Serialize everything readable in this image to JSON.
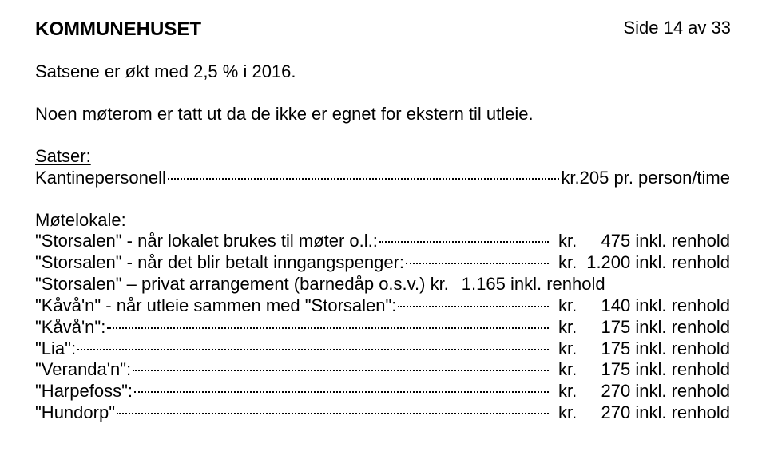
{
  "page_number": "Side 14 av 33",
  "title": "KOMMUNEHUSET",
  "intro1": "Satsene er økt med 2,5 % i 2016.",
  "intro2": "Noen møterom er tatt ut da de ikke er egnet for ekstern til utleie.",
  "section_label": "Satser:",
  "kantine_row": {
    "label": "Kantinepersonell",
    "unit": " kr.",
    "tail": "  205 pr. person/time"
  },
  "subheading": "Møtelokale:",
  "rows": [
    {
      "label": "\"Storsalen\" - når lokalet brukes til møter o.l.:",
      "unit": " kr.",
      "price": "   475 inkl. renhold"
    },
    {
      "label": "\"Storsalen\" - når det blir betalt inngangspenger:",
      "unit": " kr.",
      "price": "1.200 inkl. renhold"
    },
    {
      "label": "\"Storsalen\" – privat arrangement (barnedåp o.s.v.) kr.",
      "unit": "",
      "price": "1.165 inkl. renhold"
    },
    {
      "label": "\"Kåvå'n\" - når utleie sammen med \"Storsalen\":",
      "unit": " kr.",
      "price": "   140 inkl. renhold"
    },
    {
      "label": "\"Kåvå'n\":",
      "unit": " kr.",
      "price": "   175 inkl. renhold"
    },
    {
      "label": "\"Lia\":",
      "unit": " kr.",
      "price": "   175 inkl. renhold"
    },
    {
      "label": "\"Veranda'n\":",
      "unit": " kr.",
      "price": "   175 inkl. renhold"
    },
    {
      "label": "\"Harpefoss\":",
      "unit": " kr.",
      "price": "   270 inkl. renhold"
    },
    {
      "label": "\"Hundorp\"",
      "unit": " kr.",
      "price": "   270 inkl. renhold"
    }
  ]
}
